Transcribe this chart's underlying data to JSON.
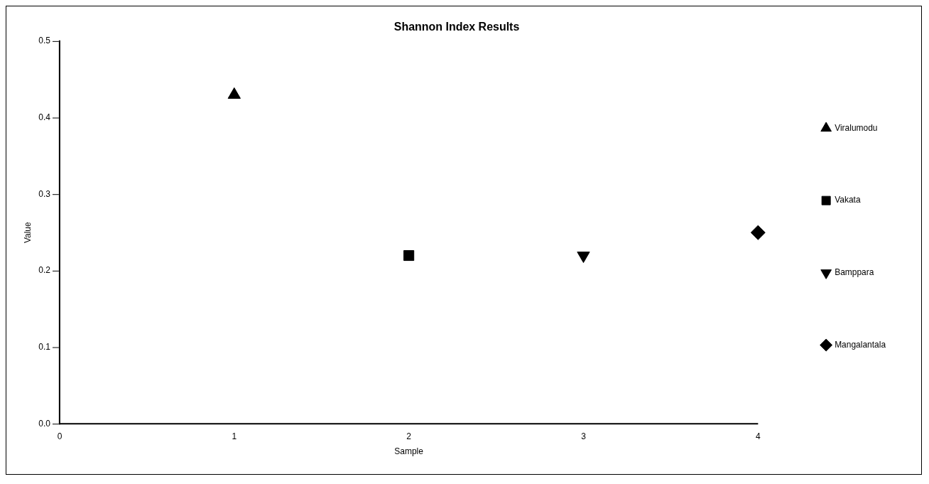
{
  "chart_data": {
    "type": "scatter",
    "title": "Shannon Index Results",
    "xlabel": "Sample",
    "ylabel": "Value",
    "xlim": [
      0,
      4
    ],
    "xticks": [
      0,
      1,
      2,
      3,
      4
    ],
    "ylim": [
      0,
      0.5
    ],
    "yticks": [
      {
        "value": 0,
        "label": "0.0"
      },
      {
        "value": 0.1,
        "label": "0.1"
      },
      {
        "value": 0.2,
        "label": "0.2"
      },
      {
        "value": 0.3,
        "label": "0.3"
      },
      {
        "value": 0.4,
        "label": "0.4"
      },
      {
        "value": 0.5,
        "label": "0.5"
      }
    ],
    "grid": false,
    "legend": "right",
    "series": [
      {
        "name": "Viralumodu",
        "color": "#000000",
        "marker": "triangle",
        "x": [
          1
        ],
        "values": [
          0.43
        ]
      },
      {
        "name": "Vakata",
        "color": "#000000",
        "marker": "square",
        "x": [
          2
        ],
        "values": [
          0.22
        ]
      },
      {
        "name": "Bamppara",
        "color": "#000000",
        "marker": "triangle-down",
        "x": [
          3
        ],
        "values": [
          0.22
        ]
      },
      {
        "name": "Mangalantala",
        "color": "#000000",
        "marker": "diamond",
        "x": [
          4
        ],
        "values": [
          0.25
        ]
      }
    ]
  }
}
